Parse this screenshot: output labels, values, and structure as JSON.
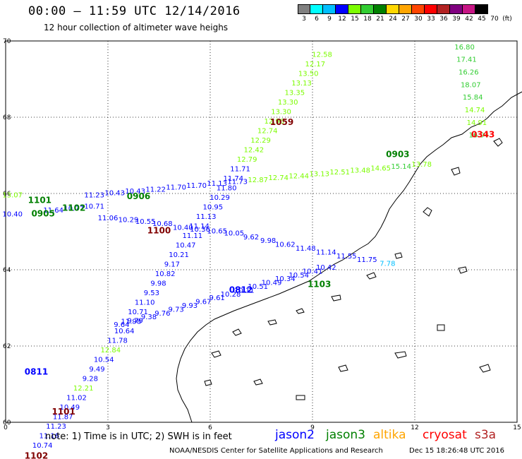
{
  "title": "00:00 – 11:59 UTC 12/14/2016",
  "subtitle": "12 hour collection of altimeter wave heighs",
  "color_scale": {
    "colors": [
      "#808080",
      "#00ffff",
      "#00bfff",
      "#0000ff",
      "#7cfc00",
      "#32cd32",
      "#008000",
      "#ffd700",
      "#ffa500",
      "#ff4500",
      "#ff0000",
      "#b22222",
      "#800080",
      "#c71585",
      "#000000"
    ],
    "labels": [
      "3",
      "6",
      "9",
      "12",
      "15",
      "18",
      "21",
      "24",
      "27",
      "30",
      "33",
      "36",
      "39",
      "42",
      "45",
      "70",
      "(ft)"
    ]
  },
  "axes": {
    "x_ticks": [
      "0",
      "3",
      "6",
      "9",
      "12",
      "15"
    ],
    "y_ticks": [
      "70",
      "68",
      "66",
      "64",
      "62",
      "60"
    ],
    "x_range": [
      0,
      15
    ],
    "y_range": [
      60,
      70
    ]
  },
  "note": "note: 1) Time is in UTC; 2) SWH is in feet",
  "satellites": [
    {
      "name": "jason2",
      "color": "#0000ff"
    },
    {
      "name": "jason3",
      "color": "#008000"
    },
    {
      "name": "altika",
      "color": "#ffa500"
    },
    {
      "name": "cryosat",
      "color": "#ff0000"
    },
    {
      "name": "s3a",
      "color": "#b22222"
    }
  ],
  "credit": "NOAA/NESDIS Center for Satellite Applications and Research",
  "timestamp": "Dec 15 18:26:48 UTC 2016",
  "chart_data": {
    "type": "scatter",
    "xlim": [
      0,
      15
    ],
    "ylim": [
      60,
      70
    ],
    "tracks": [
      {
        "name": "track-1059",
        "time_label": "1059",
        "time_color": "#800000",
        "points": [
          {
            "x": 9.28,
            "y": 69.58,
            "v": "12.58",
            "c": "#7cfc00"
          },
          {
            "x": 9.08,
            "y": 69.33,
            "v": "12.17",
            "c": "#7cfc00"
          },
          {
            "x": 8.88,
            "y": 69.08,
            "v": "13.50",
            "c": "#7cfc00"
          },
          {
            "x": 8.68,
            "y": 68.83,
            "v": "13.13",
            "c": "#7cfc00"
          },
          {
            "x": 8.48,
            "y": 68.58,
            "v": "13.35",
            "c": "#7cfc00"
          },
          {
            "x": 8.28,
            "y": 68.33,
            "v": "13.30",
            "c": "#7cfc00"
          },
          {
            "x": 8.08,
            "y": 68.08,
            "v": "13.30",
            "c": "#7cfc00"
          },
          {
            "x": 7.88,
            "y": 67.83,
            "v": "12.96",
            "c": "#7cfc00"
          },
          {
            "x": 7.68,
            "y": 67.58,
            "v": "12.74",
            "c": "#7cfc00"
          },
          {
            "x": 7.48,
            "y": 67.33,
            "v": "12.29",
            "c": "#7cfc00"
          },
          {
            "x": 7.28,
            "y": 67.08,
            "v": "12.42",
            "c": "#7cfc00"
          },
          {
            "x": 7.08,
            "y": 66.83,
            "v": "12.79",
            "c": "#7cfc00"
          },
          {
            "x": 6.88,
            "y": 66.58,
            "v": "11.71",
            "c": "#0000ff"
          },
          {
            "x": 6.68,
            "y": 66.33,
            "v": "11.74",
            "c": "#0000ff"
          },
          {
            "x": 6.48,
            "y": 66.08,
            "v": "11.80",
            "c": "#0000ff"
          },
          {
            "x": 6.28,
            "y": 65.83,
            "v": "10.29",
            "c": "#0000ff"
          },
          {
            "x": 6.08,
            "y": 65.58,
            "v": "10.95",
            "c": "#0000ff"
          },
          {
            "x": 5.88,
            "y": 65.33,
            "v": "11.13",
            "c": "#0000ff"
          },
          {
            "x": 5.68,
            "y": 65.08,
            "v": "11.14",
            "c": "#0000ff"
          },
          {
            "x": 5.48,
            "y": 64.83,
            "v": "11.11",
            "c": "#0000ff"
          },
          {
            "x": 5.28,
            "y": 64.58,
            "v": "10.47",
            "c": "#0000ff"
          },
          {
            "x": 5.08,
            "y": 64.33,
            "v": "10.21",
            "c": "#0000ff"
          },
          {
            "x": 4.88,
            "y": 64.08,
            "v": "9.17",
            "c": "#0000ff"
          },
          {
            "x": 4.68,
            "y": 63.83,
            "v": "10.82",
            "c": "#0000ff"
          },
          {
            "x": 4.48,
            "y": 63.58,
            "v": "9.98",
            "c": "#0000ff"
          },
          {
            "x": 4.28,
            "y": 63.33,
            "v": "9.53",
            "c": "#0000ff"
          },
          {
            "x": 4.08,
            "y": 63.08,
            "v": "11.10",
            "c": "#0000ff"
          },
          {
            "x": 3.88,
            "y": 62.83,
            "v": "10.71",
            "c": "#0000ff"
          },
          {
            "x": 3.68,
            "y": 62.58,
            "v": "11.98",
            "c": "#0000ff"
          },
          {
            "x": 3.48,
            "y": 62.33,
            "v": "10.64",
            "c": "#0000ff"
          },
          {
            "x": 3.28,
            "y": 62.08,
            "v": "11.78",
            "c": "#0000ff"
          },
          {
            "x": 3.08,
            "y": 61.83,
            "v": "12.84",
            "c": "#7cfc00"
          },
          {
            "x": 2.88,
            "y": 61.58,
            "v": "10.54",
            "c": "#0000ff"
          },
          {
            "x": 2.68,
            "y": 61.33,
            "v": "9.49",
            "c": "#0000ff"
          },
          {
            "x": 2.48,
            "y": 61.08,
            "v": "9.28",
            "c": "#0000ff"
          },
          {
            "x": 2.28,
            "y": 60.83,
            "v": "12.21",
            "c": "#7cfc00"
          },
          {
            "x": 2.08,
            "y": 60.58,
            "v": "11.02",
            "c": "#0000ff"
          },
          {
            "x": 1.88,
            "y": 60.33,
            "v": "10.49",
            "c": "#0000ff"
          },
          {
            "x": 1.68,
            "y": 60.08,
            "v": "11.87",
            "c": "#0000ff"
          },
          {
            "x": 1.48,
            "y": 59.83,
            "v": "11.23",
            "c": "#0000ff"
          },
          {
            "x": 1.28,
            "y": 59.58,
            "v": "11.16",
            "c": "#0000ff"
          },
          {
            "x": 1.08,
            "y": 59.33,
            "v": "10.74",
            "c": "#0000ff"
          }
        ]
      },
      {
        "name": "track-0343",
        "time_label": "0343",
        "time_color": "#ff0000",
        "points": [
          {
            "x": 13.46,
            "y": 69.78,
            "v": "16.80",
            "c": "#32cd32"
          },
          {
            "x": 13.52,
            "y": 69.45,
            "v": "17.41",
            "c": "#32cd32"
          },
          {
            "x": 13.58,
            "y": 69.12,
            "v": "16.26",
            "c": "#32cd32"
          },
          {
            "x": 13.64,
            "y": 68.79,
            "v": "18.07",
            "c": "#32cd32"
          },
          {
            "x": 13.7,
            "y": 68.46,
            "v": "15.84",
            "c": "#32cd32"
          },
          {
            "x": 13.76,
            "y": 68.13,
            "v": "14.74",
            "c": "#7cfc00"
          },
          {
            "x": 13.82,
            "y": 67.8,
            "v": "14.91",
            "c": "#7cfc00"
          },
          {
            "x": 13.88,
            "y": 67.47,
            "v": "16.94",
            "c": "#32cd32"
          }
        ]
      },
      {
        "name": "track-0812",
        "time_label": "0812",
        "time_color": "#0000ff",
        "points": [
          {
            "x": 3.4,
            "y": 62.5,
            "v": "9.64",
            "c": "#0000ff"
          },
          {
            "x": 3.8,
            "y": 62.6,
            "v": "9.79",
            "c": "#0000ff"
          },
          {
            "x": 4.2,
            "y": 62.7,
            "v": "9.38",
            "c": "#0000ff"
          },
          {
            "x": 4.6,
            "y": 62.8,
            "v": "9.76",
            "c": "#0000ff"
          },
          {
            "x": 5.0,
            "y": 62.9,
            "v": "9.73",
            "c": "#0000ff"
          },
          {
            "x": 5.4,
            "y": 63.0,
            "v": "9.93",
            "c": "#0000ff"
          },
          {
            "x": 5.8,
            "y": 63.1,
            "v": "9.67",
            "c": "#0000ff"
          },
          {
            "x": 6.2,
            "y": 63.2,
            "v": "9.61",
            "c": "#0000ff"
          },
          {
            "x": 6.6,
            "y": 63.3,
            "v": "10.28",
            "c": "#0000ff"
          },
          {
            "x": 7.0,
            "y": 63.4,
            "v": "10.11",
            "c": "#0000ff"
          },
          {
            "x": 7.4,
            "y": 63.5,
            "v": "10.51",
            "c": "#0000ff"
          },
          {
            "x": 7.8,
            "y": 63.6,
            "v": "10.49",
            "c": "#0000ff"
          },
          {
            "x": 8.2,
            "y": 63.7,
            "v": "10.34",
            "c": "#0000ff"
          },
          {
            "x": 8.6,
            "y": 63.8,
            "v": "10.54",
            "c": "#0000ff"
          },
          {
            "x": 9.0,
            "y": 63.9,
            "v": "10.41",
            "c": "#0000ff"
          },
          {
            "x": 9.4,
            "y": 64.0,
            "v": "10.42",
            "c": "#0000ff"
          }
        ]
      },
      {
        "name": "track-0905",
        "time_label": "0905",
        "time_color": "#0000ff",
        "points": [
          {
            "x": 0.2,
            "y": 65.4,
            "v": "10.40",
            "c": "#0000ff"
          },
          {
            "x": 1.4,
            "y": 65.5,
            "v": "11.64",
            "c": "#0000ff"
          },
          {
            "x": 2.0,
            "y": 65.55,
            "v": "10.77",
            "c": "#0000ff"
          },
          {
            "x": 2.6,
            "y": 65.6,
            "v": "10.71",
            "c": "#0000ff"
          },
          {
            "x": 3.0,
            "y": 65.3,
            "v": "11.06",
            "c": "#0000ff"
          },
          {
            "x": 3.6,
            "y": 65.25,
            "v": "10.29",
            "c": "#0000ff"
          },
          {
            "x": 4.1,
            "y": 65.2,
            "v": "10.55",
            "c": "#0000ff"
          },
          {
            "x": 4.6,
            "y": 65.15,
            "v": "10.68",
            "c": "#0000ff"
          },
          {
            "x": 5.2,
            "y": 65.05,
            "v": "10.40",
            "c": "#0000ff"
          },
          {
            "x": 5.7,
            "y": 65.0,
            "v": "10.36",
            "c": "#0000ff"
          },
          {
            "x": 6.2,
            "y": 64.95,
            "v": "10.65",
            "c": "#0000ff"
          },
          {
            "x": 6.7,
            "y": 64.9,
            "v": "10.05",
            "c": "#0000ff"
          },
          {
            "x": 7.2,
            "y": 64.8,
            "v": "9.62",
            "c": "#0000ff"
          },
          {
            "x": 7.7,
            "y": 64.7,
            "v": "9.98",
            "c": "#0000ff"
          },
          {
            "x": 8.2,
            "y": 64.6,
            "v": "10.62",
            "c": "#0000ff"
          },
          {
            "x": 8.8,
            "y": 64.5,
            "v": "11.48",
            "c": "#0000ff"
          },
          {
            "x": 9.4,
            "y": 64.4,
            "v": "11.14",
            "c": "#0000ff"
          },
          {
            "x": 10.0,
            "y": 64.3,
            "v": "11.55",
            "c": "#0000ff"
          },
          {
            "x": 10.6,
            "y": 64.2,
            "v": "11.75",
            "c": "#0000ff"
          },
          {
            "x": 11.2,
            "y": 64.1,
            "v": "7.78",
            "c": "#00bfff"
          }
        ]
      },
      {
        "name": "track-0901",
        "time_label": "0901",
        "time_color": "#008000",
        "points": [
          {
            "x": 0.2,
            "y": 65.9,
            "v": "13.07",
            "c": "#7cfc00"
          },
          {
            "x": 2.6,
            "y": 65.9,
            "v": "11.23",
            "c": "#0000ff"
          },
          {
            "x": 3.2,
            "y": 65.95,
            "v": "10.43",
            "c": "#0000ff"
          },
          {
            "x": 3.8,
            "y": 66.0,
            "v": "10.43",
            "c": "#0000ff"
          },
          {
            "x": 4.4,
            "y": 66.05,
            "v": "11.22",
            "c": "#0000ff"
          },
          {
            "x": 5.0,
            "y": 66.1,
            "v": "11.70",
            "c": "#0000ff"
          },
          {
            "x": 5.6,
            "y": 66.15,
            "v": "11.70",
            "c": "#0000ff"
          },
          {
            "x": 6.2,
            "y": 66.2,
            "v": "11.13",
            "c": "#0000ff"
          },
          {
            "x": 6.8,
            "y": 66.25,
            "v": "11.73",
            "c": "#0000ff"
          },
          {
            "x": 7.4,
            "y": 66.3,
            "v": "12.87",
            "c": "#7cfc00"
          },
          {
            "x": 8.0,
            "y": 66.35,
            "v": "12.74",
            "c": "#7cfc00"
          },
          {
            "x": 8.6,
            "y": 66.4,
            "v": "12.44",
            "c": "#7cfc00"
          },
          {
            "x": 9.2,
            "y": 66.45,
            "v": "13.13",
            "c": "#7cfc00"
          },
          {
            "x": 9.8,
            "y": 66.5,
            "v": "12.51",
            "c": "#7cfc00"
          },
          {
            "x": 10.4,
            "y": 66.55,
            "v": "13.48",
            "c": "#7cfc00"
          },
          {
            "x": 11.0,
            "y": 66.6,
            "v": "14.65",
            "c": "#7cfc00"
          },
          {
            "x": 11.6,
            "y": 66.65,
            "v": "15.14",
            "c": "#32cd32"
          },
          {
            "x": 12.2,
            "y": 66.7,
            "v": "13.78",
            "c": "#7cfc00"
          }
        ]
      }
    ],
    "time_labels": [
      {
        "x": 8.1,
        "y": 67.8,
        "t": "1059",
        "c": "#800000"
      },
      {
        "x": 14.0,
        "y": 67.47,
        "t": "0343",
        "c": "#ff0000"
      },
      {
        "x": 1.0,
        "y": 65.75,
        "t": "1101",
        "c": "#008000"
      },
      {
        "x": 1.1,
        "y": 65.4,
        "t": "0905",
        "c": "#008000"
      },
      {
        "x": 2.0,
        "y": 65.55,
        "t": "1102",
        "c": "#008000"
      },
      {
        "x": 3.9,
        "y": 65.85,
        "t": "0906",
        "c": "#008000"
      },
      {
        "x": 4.5,
        "y": 64.95,
        "t": "1100",
        "c": "#800000"
      },
      {
        "x": 6.9,
        "y": 63.4,
        "t": "0812",
        "c": "#0000ff"
      },
      {
        "x": 9.2,
        "y": 63.55,
        "t": "1103",
        "c": "#008000"
      },
      {
        "x": 11.5,
        "y": 66.95,
        "t": "0903",
        "c": "#008000"
      },
      {
        "x": 0.9,
        "y": 61.25,
        "t": "0811",
        "c": "#0000ff"
      },
      {
        "x": 1.7,
        "y": 60.2,
        "t": "1101",
        "c": "#800000"
      },
      {
        "x": 0.9,
        "y": 59.05,
        "t": "1102",
        "c": "#800000"
      }
    ]
  }
}
